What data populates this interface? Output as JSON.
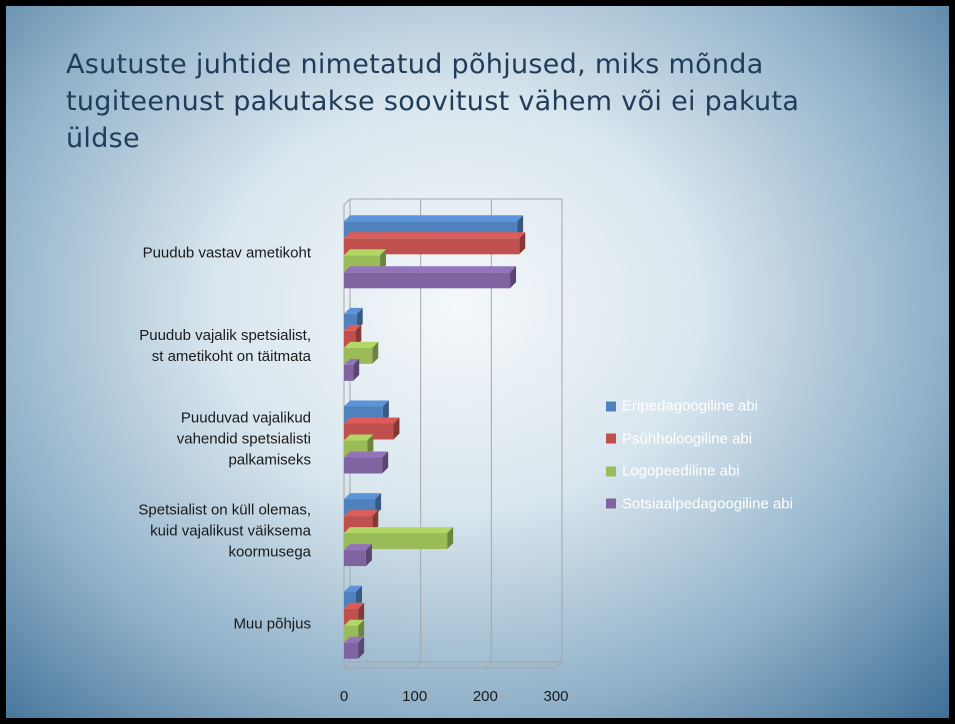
{
  "chart_data": {
    "type": "bar",
    "orientation": "horizontal",
    "3d": true,
    "title": "Asutuste juhtide nimetatud põhjused, miks mõnda tugiteenust pakutakse soovitust vähem või ei pakuta üldse",
    "categories": [
      "Puudub vastav ametikoht",
      "Puudub vajalik spetsialist,\nst ametikoht on täitmata",
      "Puuduvad vajalikud\nvahendid spetsialisti\npalkamiseks",
      "Spetsialist on küll olemas,\nkuid vajalikust väiksema\nkoormusega",
      "Muu põhjus"
    ],
    "series": [
      {
        "name": "Eripedagoogiline abi",
        "color": "#4f81bd",
        "values": [
          245,
          18,
          55,
          44,
          17
        ]
      },
      {
        "name": "Psühholoogiline abi",
        "color": "#c0504d",
        "values": [
          248,
          16,
          70,
          40,
          20
        ]
      },
      {
        "name": "Logopeediline abi",
        "color": "#9bbb59",
        "values": [
          51,
          40,
          33,
          146,
          20
        ]
      },
      {
        "name": "Sotsiaalpedagoogiline abi",
        "color": "#8064a2",
        "values": [
          235,
          13,
          54,
          31,
          20
        ]
      }
    ],
    "xlim": [
      0,
      300
    ],
    "xticks": [
      0,
      100,
      200,
      300
    ],
    "grid": true,
    "legend": "right"
  }
}
